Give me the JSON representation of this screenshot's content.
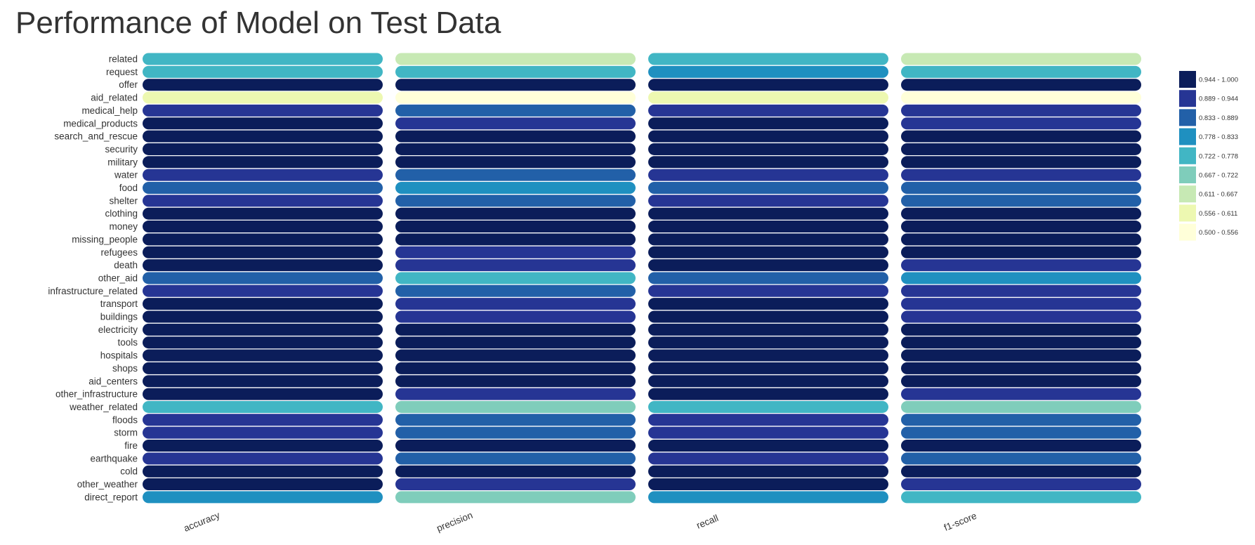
{
  "chart_data": {
    "type": "heatmap",
    "title": "Performance of Model on Test Data",
    "columns": [
      "accuracy",
      "precision",
      "recall",
      "f1-score"
    ],
    "rows": [
      "related",
      "request",
      "offer",
      "aid_related",
      "medical_help",
      "medical_products",
      "search_and_rescue",
      "security",
      "military",
      "water",
      "food",
      "shelter",
      "clothing",
      "money",
      "missing_people",
      "refugees",
      "death",
      "other_aid",
      "infrastructure_related",
      "transport",
      "buildings",
      "electricity",
      "tools",
      "hospitals",
      "shops",
      "aid_centers",
      "other_infrastructure",
      "weather_related",
      "floods",
      "storm",
      "fire",
      "earthquake",
      "cold",
      "other_weather",
      "direct_report"
    ],
    "values": [
      [
        0.75,
        0.64,
        0.75,
        0.64
      ],
      [
        0.75,
        0.75,
        0.8,
        0.75
      ],
      [
        0.97,
        0.97,
        0.97,
        0.97
      ],
      [
        0.58,
        0.52,
        0.58,
        0.52
      ],
      [
        0.92,
        0.86,
        0.92,
        0.91
      ],
      [
        0.95,
        0.92,
        0.95,
        0.92
      ],
      [
        0.97,
        0.96,
        0.97,
        0.96
      ],
      [
        0.98,
        0.97,
        0.98,
        0.97
      ],
      [
        0.97,
        0.96,
        0.97,
        0.96
      ],
      [
        0.92,
        0.86,
        0.92,
        0.91
      ],
      [
        0.86,
        0.8,
        0.86,
        0.86
      ],
      [
        0.92,
        0.86,
        0.92,
        0.86
      ],
      [
        0.98,
        0.97,
        0.98,
        0.97
      ],
      [
        0.98,
        0.97,
        0.98,
        0.97
      ],
      [
        0.99,
        0.98,
        0.99,
        0.98
      ],
      [
        0.96,
        0.92,
        0.96,
        0.95
      ],
      [
        0.95,
        0.91,
        0.95,
        0.92
      ],
      [
        0.86,
        0.75,
        0.86,
        0.8
      ],
      [
        0.92,
        0.86,
        0.92,
        0.91
      ],
      [
        0.95,
        0.91,
        0.95,
        0.92
      ],
      [
        0.95,
        0.91,
        0.95,
        0.92
      ],
      [
        0.98,
        0.96,
        0.98,
        0.96
      ],
      [
        0.99,
        0.98,
        0.99,
        0.98
      ],
      [
        0.99,
        0.98,
        0.99,
        0.98
      ],
      [
        0.99,
        0.98,
        0.99,
        0.98
      ],
      [
        0.99,
        0.98,
        0.99,
        0.98
      ],
      [
        0.95,
        0.91,
        0.95,
        0.92
      ],
      [
        0.75,
        0.7,
        0.75,
        0.7
      ],
      [
        0.92,
        0.86,
        0.92,
        0.86
      ],
      [
        0.92,
        0.86,
        0.92,
        0.86
      ],
      [
        0.99,
        0.98,
        0.99,
        0.98
      ],
      [
        0.91,
        0.86,
        0.91,
        0.86
      ],
      [
        0.98,
        0.97,
        0.98,
        0.97
      ],
      [
        0.95,
        0.91,
        0.95,
        0.92
      ],
      [
        0.8,
        0.7,
        0.8,
        0.75
      ]
    ],
    "legend": {
      "placement": "right",
      "bins": [
        {
          "label": "0.944 - 1.000",
          "min": 0.944,
          "max": 1.0,
          "color": "#0b1d5a"
        },
        {
          "label": "0.889 - 0.944",
          "min": 0.889,
          "max": 0.944,
          "color": "#263594"
        },
        {
          "label": "0.833 - 0.889",
          "min": 0.833,
          "max": 0.889,
          "color": "#2260a8"
        },
        {
          "label": "0.778 - 0.833",
          "min": 0.778,
          "max": 0.833,
          "color": "#1f90c0"
        },
        {
          "label": "0.722 - 0.778",
          "min": 0.722,
          "max": 0.778,
          "color": "#41b6c4"
        },
        {
          "label": "0.667 - 0.722",
          "min": 0.667,
          "max": 0.722,
          "color": "#7fcdbb"
        },
        {
          "label": "0.611 - 0.667",
          "min": 0.611,
          "max": 0.667,
          "color": "#c7e9b4"
        },
        {
          "label": "0.556 - 0.611",
          "min": 0.556,
          "max": 0.611,
          "color": "#edf8b1"
        },
        {
          "label": "0.500 - 0.556",
          "min": 0.5,
          "max": 0.556,
          "color": "#ffffd9"
        }
      ]
    }
  }
}
